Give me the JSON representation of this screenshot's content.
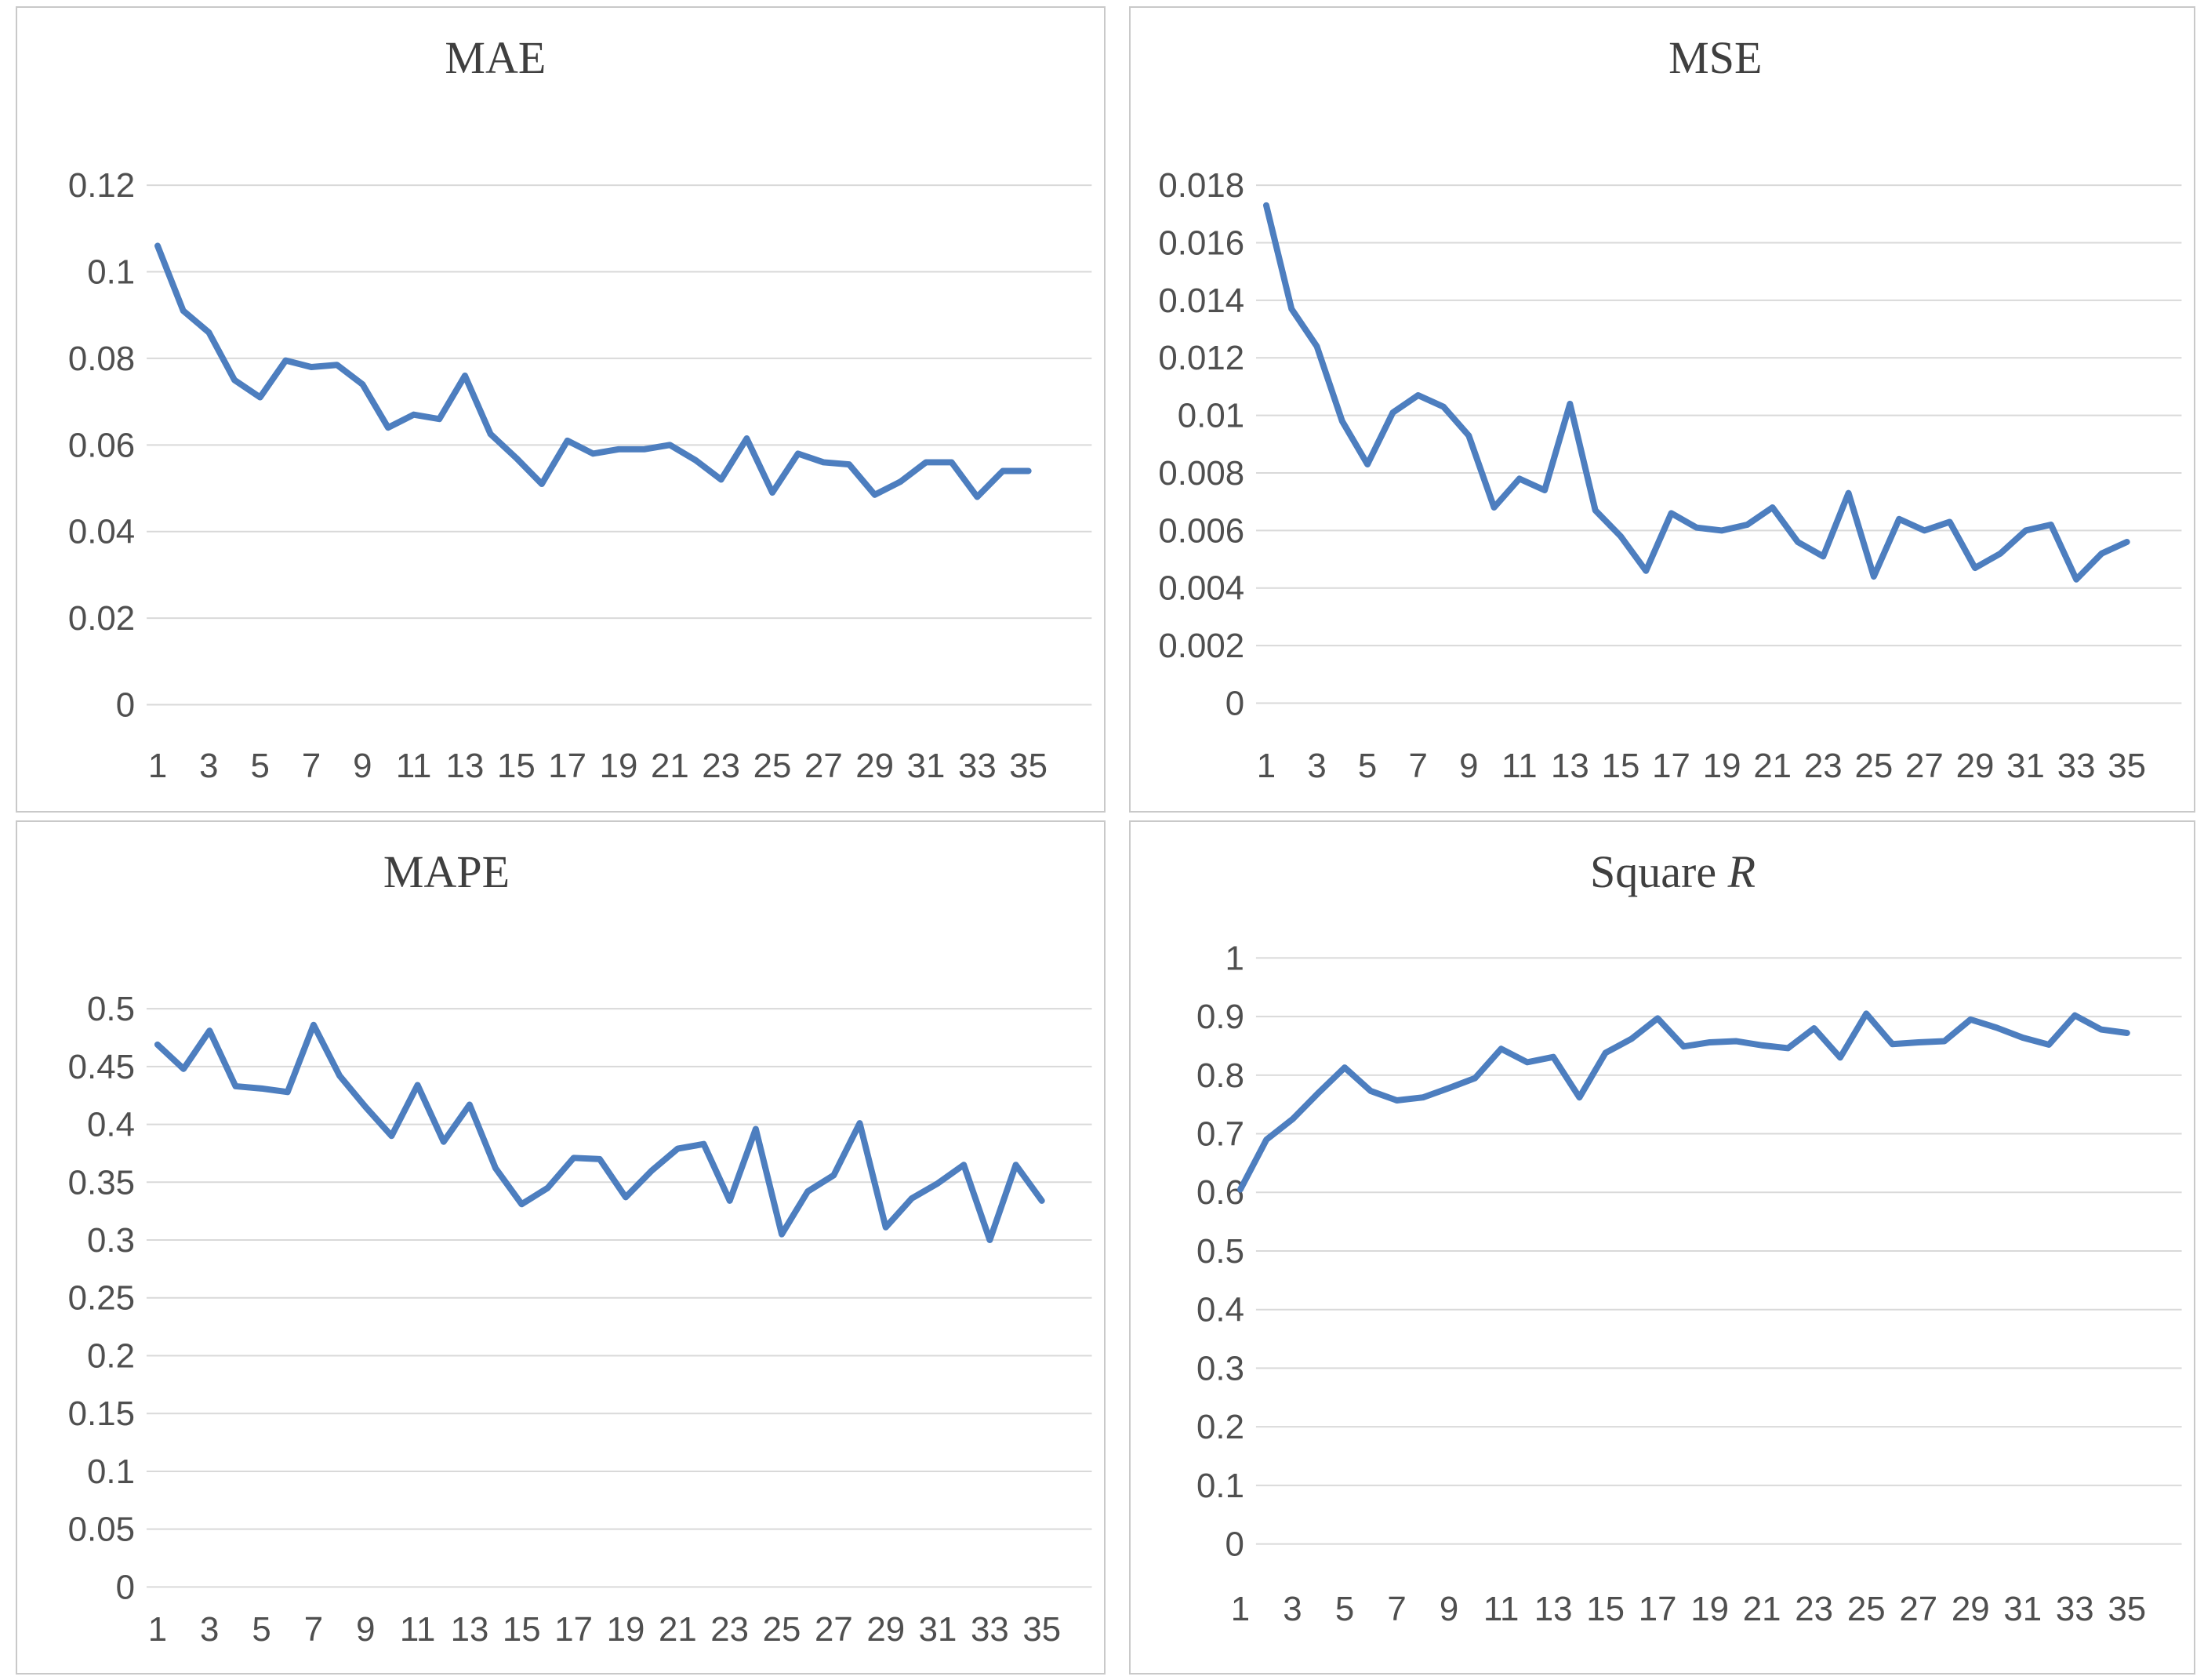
{
  "page": {
    "background": "#ffffff",
    "line_color": "#4d7ebf",
    "grid_color": "#d9d9d9",
    "panel_border_color": "#c9c9c9",
    "title_color": "#3f3f3f",
    "tick_color": "#4f4f4f"
  },
  "chart_data": [
    {
      "type": "line",
      "title": "MAE",
      "title_main": "MAE",
      "title_italic": "",
      "xlabel": "",
      "ylabel": "",
      "x": [
        1,
        2,
        3,
        4,
        5,
        6,
        7,
        8,
        9,
        10,
        11,
        12,
        13,
        14,
        15,
        16,
        17,
        18,
        19,
        20,
        21,
        22,
        23,
        24,
        25,
        26,
        27,
        28,
        29,
        30,
        31,
        32,
        33,
        34,
        35
      ],
      "values": [
        0.106,
        0.091,
        0.086,
        0.075,
        0.071,
        0.0795,
        0.078,
        0.0785,
        0.074,
        0.064,
        0.067,
        0.066,
        0.076,
        0.0625,
        0.057,
        0.051,
        0.061,
        0.058,
        0.059,
        0.059,
        0.06,
        0.0565,
        0.052,
        0.0615,
        0.049,
        0.058,
        0.056,
        0.0555,
        0.0485,
        0.0515,
        0.056,
        0.056,
        0.048,
        0.054,
        0.054
      ],
      "ylim": [
        0,
        0.12
      ],
      "ytick_step": 0.02,
      "ytick_labels": [
        "0.12",
        "0.1",
        "0.08",
        "0.06",
        "0.04",
        "0.02",
        "0"
      ],
      "xtick_labels": [
        "1",
        "3",
        "5",
        "7",
        "9",
        "11",
        "13",
        "15",
        "17",
        "19",
        "21",
        "23",
        "25",
        "27",
        "29",
        "31",
        "33",
        "35"
      ],
      "grid": true,
      "legend": null
    },
    {
      "type": "line",
      "title": "MSE",
      "title_main": "MSE",
      "title_italic": "",
      "xlabel": "",
      "ylabel": "",
      "x": [
        1,
        2,
        3,
        4,
        5,
        6,
        7,
        8,
        9,
        10,
        11,
        12,
        13,
        14,
        15,
        16,
        17,
        18,
        19,
        20,
        21,
        22,
        23,
        24,
        25,
        26,
        27,
        28,
        29,
        30,
        31,
        32,
        33,
        34,
        35
      ],
      "values": [
        0.0173,
        0.0137,
        0.0124,
        0.0098,
        0.0083,
        0.0101,
        0.0107,
        0.0103,
        0.0093,
        0.0068,
        0.0078,
        0.0074,
        0.0104,
        0.0067,
        0.0058,
        0.0046,
        0.0066,
        0.0061,
        0.006,
        0.0062,
        0.0068,
        0.0056,
        0.0051,
        0.0073,
        0.0044,
        0.0064,
        0.006,
        0.0063,
        0.0047,
        0.0052,
        0.006,
        0.0062,
        0.0043,
        0.0052,
        0.0056
      ],
      "ylim": [
        0,
        0.018
      ],
      "ytick_step": 0.002,
      "ytick_labels": [
        "0.018",
        "0.016",
        "0.014",
        "0.012",
        "0.01",
        "0.008",
        "0.006",
        "0.004",
        "0.002",
        "0"
      ],
      "xtick_labels": [
        "1",
        "3",
        "5",
        "7",
        "9",
        "11",
        "13",
        "15",
        "17",
        "19",
        "21",
        "23",
        "25",
        "27",
        "29",
        "31",
        "33",
        "35"
      ],
      "grid": true,
      "legend": null
    },
    {
      "type": "line",
      "title": "MAPE",
      "title_main": "MAPE",
      "title_italic": "",
      "xlabel": "",
      "ylabel": "",
      "x": [
        1,
        2,
        3,
        4,
        5,
        6,
        7,
        8,
        9,
        10,
        11,
        12,
        13,
        14,
        15,
        16,
        17,
        18,
        19,
        20,
        21,
        22,
        23,
        24,
        25,
        26,
        27,
        28,
        29,
        30,
        31,
        32,
        33,
        34,
        35
      ],
      "values": [
        0.469,
        0.448,
        0.481,
        0.433,
        0.431,
        0.428,
        0.486,
        0.442,
        0.415,
        0.39,
        0.434,
        0.385,
        0.417,
        0.362,
        0.331,
        0.345,
        0.371,
        0.37,
        0.337,
        0.36,
        0.379,
        0.383,
        0.334,
        0.396,
        0.305,
        0.342,
        0.356,
        0.401,
        0.311,
        0.336,
        0.349,
        0.365,
        0.3,
        0.365,
        0.334
      ],
      "ylim": [
        0,
        0.5
      ],
      "ytick_step": 0.05,
      "ytick_labels": [
        "0.5",
        "0.45",
        "0.4",
        "0.35",
        "0.3",
        "0.25",
        "0.2",
        "0.15",
        "0.1",
        "0.05",
        "0"
      ],
      "xtick_labels": [
        "1",
        "3",
        "5",
        "7",
        "9",
        "11",
        "13",
        "15",
        "17",
        "19",
        "21",
        "23",
        "25",
        "27",
        "29",
        "31",
        "33",
        "35"
      ],
      "grid": true,
      "legend": null
    },
    {
      "type": "line",
      "title": "Square R",
      "title_main": "Square ",
      "title_italic": "R",
      "xlabel": "",
      "ylabel": "",
      "x": [
        1,
        2,
        3,
        4,
        5,
        6,
        7,
        8,
        9,
        10,
        11,
        12,
        13,
        14,
        15,
        16,
        17,
        18,
        19,
        20,
        21,
        22,
        23,
        24,
        25,
        26,
        27,
        28,
        29,
        30,
        31,
        32,
        33,
        34,
        35
      ],
      "values": [
        0.605,
        0.69,
        0.725,
        0.77,
        0.813,
        0.773,
        0.757,
        0.762,
        0.778,
        0.795,
        0.845,
        0.822,
        0.831,
        0.762,
        0.838,
        0.862,
        0.897,
        0.849,
        0.856,
        0.858,
        0.851,
        0.846,
        0.88,
        0.83,
        0.905,
        0.853,
        0.856,
        0.858,
        0.895,
        0.881,
        0.864,
        0.852,
        0.902,
        0.878,
        0.872
      ],
      "ylim": [
        0,
        1
      ],
      "ytick_step": 0.1,
      "ytick_labels": [
        "1",
        "0.9",
        "0.8",
        "0.7",
        "0.6",
        "0.5",
        "0.4",
        "0.3",
        "0.2",
        "0.1",
        "0"
      ],
      "xtick_labels": [
        "1",
        "3",
        "5",
        "7",
        "9",
        "11",
        "13",
        "15",
        "17",
        "19",
        "21",
        "23",
        "25",
        "27",
        "29",
        "31",
        "33",
        "35"
      ],
      "grid": true,
      "legend": null
    }
  ]
}
